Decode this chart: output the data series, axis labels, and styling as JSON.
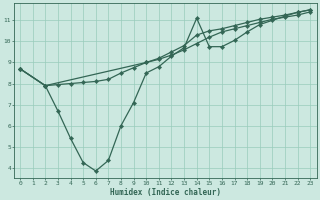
{
  "xlabel": "Humidex (Indice chaleur)",
  "bg_color": "#cce8e0",
  "grid_color": "#99ccbb",
  "line_color": "#336655",
  "xlim": [
    -0.5,
    23.5
  ],
  "ylim": [
    3.5,
    11.8
  ],
  "xticks": [
    0,
    1,
    2,
    3,
    4,
    5,
    6,
    7,
    8,
    9,
    10,
    11,
    12,
    13,
    14,
    15,
    16,
    17,
    18,
    19,
    20,
    21,
    22,
    23
  ],
  "yticks": [
    4,
    5,
    6,
    7,
    8,
    9,
    10,
    11
  ],
  "line1_x": [
    0,
    2,
    10,
    11,
    12,
    13,
    14,
    15,
    16,
    17,
    18,
    19,
    20,
    21,
    22,
    23
  ],
  "line1_y": [
    8.7,
    7.9,
    9.0,
    9.15,
    9.35,
    9.6,
    9.9,
    10.2,
    10.45,
    10.6,
    10.75,
    10.9,
    11.05,
    11.15,
    11.25,
    11.4
  ],
  "line2_x": [
    0,
    2,
    3,
    4,
    5,
    6,
    7,
    8,
    9,
    10,
    11,
    12,
    13,
    14,
    15,
    16,
    17,
    18,
    19,
    20,
    21,
    22,
    23
  ],
  "line2_y": [
    8.7,
    7.9,
    7.95,
    8.0,
    8.05,
    8.1,
    8.2,
    8.5,
    8.75,
    9.0,
    9.2,
    9.5,
    9.8,
    10.3,
    10.5,
    10.6,
    10.75,
    10.9,
    11.05,
    11.15,
    11.25,
    11.38,
    11.5
  ],
  "line3_x": [
    0,
    2,
    3,
    4,
    5,
    6,
    7,
    8,
    9,
    10,
    11,
    12,
    13,
    14,
    15,
    16,
    17,
    18,
    19,
    20,
    21,
    22,
    23
  ],
  "line3_y": [
    8.7,
    7.9,
    6.7,
    5.4,
    4.25,
    3.85,
    4.35,
    6.0,
    7.1,
    8.5,
    8.8,
    9.3,
    9.7,
    11.1,
    9.75,
    9.75,
    10.05,
    10.45,
    10.8,
    11.0,
    11.2,
    11.38,
    11.5
  ]
}
